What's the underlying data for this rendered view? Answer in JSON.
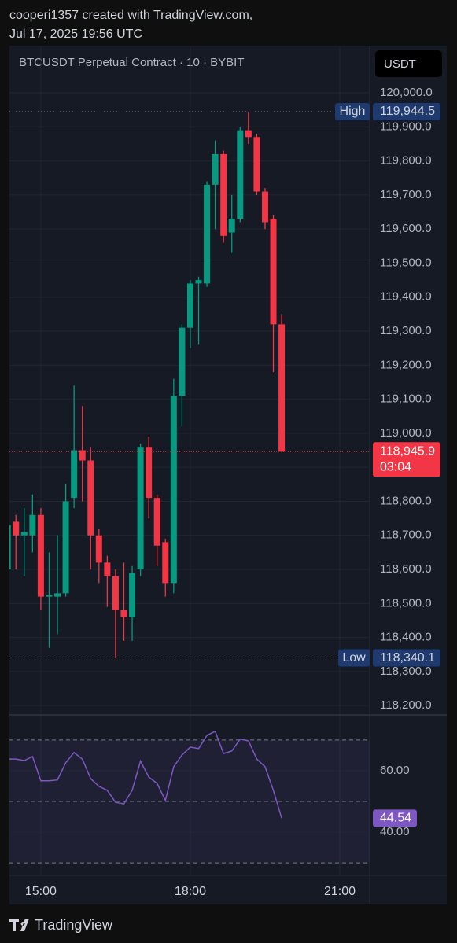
{
  "header": {
    "line1": "cooperi1357 created with TradingView.com,",
    "line2": "Jul 17, 2025 19:56 UTC"
  },
  "footer": "TradingView",
  "chart_data": [
    {
      "type": "candlestick",
      "title": "BTCUSDT Perpetual Contract · 10 · BYBIT",
      "currency": "USDT",
      "categories": [
        null,
        null,
        null,
        null,
        null,
        null,
        null,
        null,
        null,
        null,
        null,
        null,
        null,
        null,
        null,
        null,
        null,
        null,
        null,
        null,
        null,
        null,
        null,
        null,
        null,
        null,
        null,
        null,
        null,
        null,
        null,
        null,
        null,
        null
      ],
      "open": [
        118600,
        118740,
        118700,
        118700,
        118760,
        118520,
        118520,
        118530,
        118810,
        118950,
        118920,
        118700,
        118620,
        118580,
        118480,
        118460,
        118600,
        118960,
        118810,
        118680,
        118560,
        119110,
        119310,
        119440,
        119440,
        119730,
        119820,
        119590,
        119630,
        119890,
        119870,
        119710,
        119630,
        119320
      ],
      "high": [
        118740,
        118760,
        118780,
        118820,
        118780,
        118650,
        118700,
        118850,
        119140,
        119080,
        118960,
        118720,
        118640,
        118600,
        118620,
        118610,
        118970,
        118990,
        118820,
        118690,
        119160,
        119320,
        119450,
        119460,
        119740,
        119860,
        119830,
        119700,
        119900,
        119944.5,
        119880,
        119720,
        119640,
        119350
      ],
      "low": [
        118400,
        118600,
        118580,
        118650,
        118480,
        118370,
        118410,
        118520,
        118780,
        118800,
        118600,
        118560,
        118490,
        118340.1,
        118390,
        118390,
        118580,
        118750,
        118610,
        118520,
        118530,
        119020,
        119250,
        119260,
        119430,
        119600,
        119560,
        119530,
        119620,
        119850,
        119700,
        119600,
        119180,
        118945.9
      ],
      "close": [
        118730,
        118700,
        118710,
        118760,
        118520,
        118525,
        118530,
        118800,
        118950,
        118920,
        118700,
        118620,
        118580,
        118480,
        118460,
        118590,
        118960,
        118810,
        118670,
        118560,
        119110,
        119310,
        119440,
        119450,
        119730,
        119820,
        119580,
        119630,
        119890,
        119870,
        119710,
        119620,
        119320,
        118945.9
      ],
      "up_color": "#089981",
      "down_color": "#f23645",
      "xlim": [
        0.22,
        43.6
      ],
      "xticks": [
        {
          "value": 4,
          "label": "15:00"
        },
        {
          "value": 22,
          "label": "18:00"
        },
        {
          "value": 40,
          "label": "21:00"
        }
      ],
      "ylim": [
        118175,
        120134
      ],
      "yticks": [
        {
          "value": 120000,
          "label": "120,000.0"
        },
        {
          "value": 119900,
          "label": "119,900.0"
        },
        {
          "value": 119800,
          "label": "119,800.0"
        },
        {
          "value": 119700,
          "label": "119,700.0"
        },
        {
          "value": 119600,
          "label": "119,600.0"
        },
        {
          "value": 119500,
          "label": "119,500.0"
        },
        {
          "value": 119400,
          "label": "119,400.0"
        },
        {
          "value": 119300,
          "label": "119,300.0"
        },
        {
          "value": 119200,
          "label": "119,200.0"
        },
        {
          "value": 119100,
          "label": "119,100.0"
        },
        {
          "value": 119000,
          "label": "119,000.0"
        },
        {
          "value": 118900,
          "label": "118,900.0"
        },
        {
          "value": 118800,
          "label": "118,800.0"
        },
        {
          "value": 118700,
          "label": "118,700.0"
        },
        {
          "value": 118600,
          "label": "118,600.0"
        },
        {
          "value": 118500,
          "label": "118,500.0"
        },
        {
          "value": 118400,
          "label": "118,400.0"
        },
        {
          "value": 118300,
          "label": "118,300.0"
        },
        {
          "value": 118200,
          "label": "118,200.0"
        }
      ],
      "grid": true,
      "high_marker": {
        "label": "High",
        "value": 119944.5,
        "value_label": "119,944.5"
      },
      "low_marker": {
        "label": "Low",
        "value": 118340.1,
        "value_label": "118,340.1"
      },
      "last_price": {
        "value": 118945.9,
        "value_label": "118,945.9",
        "countdown": "03:04"
      }
    },
    {
      "type": "line",
      "series": [
        {
          "color": "#7e57c2",
          "values": [
            63.8,
            63.8,
            63.3,
            64.6,
            56.7,
            56.7,
            57.0,
            62.6,
            65.9,
            63.8,
            57.4,
            54.9,
            53.6,
            49.7,
            49.2,
            53.6,
            63.1,
            57.9,
            55.9,
            50.3,
            61.3,
            65.1,
            67.7,
            67.2,
            71.5,
            72.8,
            65.6,
            66.4,
            70.3,
            69.7,
            63.8,
            61.3,
            53.6,
            44.54
          ]
        }
      ],
      "ylim": [
        26.2,
        77.9
      ],
      "yticks": [
        {
          "value": 60,
          "label": "60.00"
        },
        {
          "value": 40,
          "label": "40.00"
        }
      ],
      "band_lines": [
        70,
        50,
        30
      ],
      "band_color": "#7e57c2",
      "last_value_label": "44.54"
    }
  ]
}
